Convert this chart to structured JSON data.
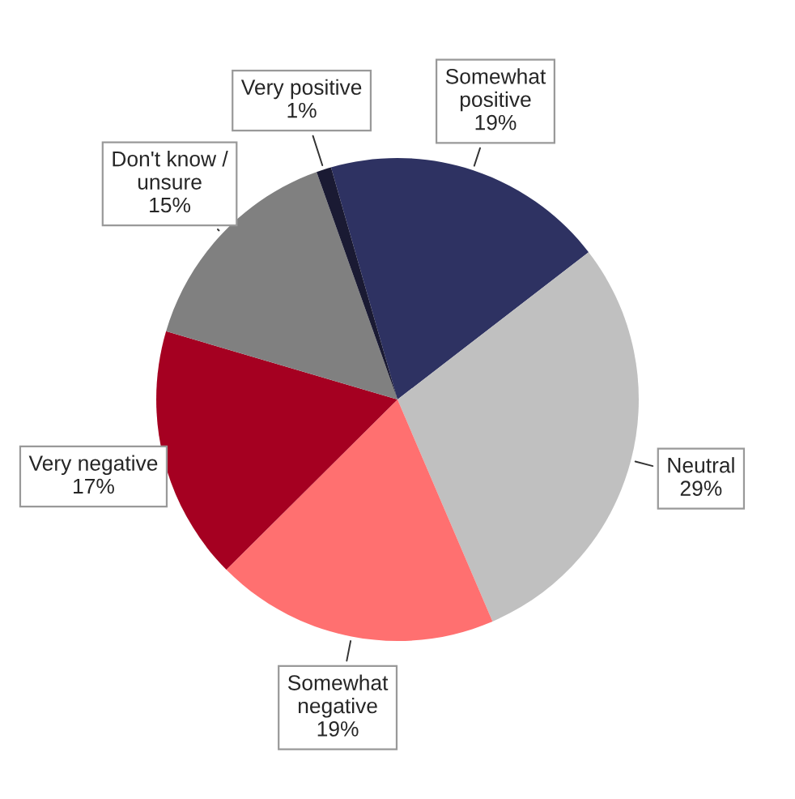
{
  "chart_data": {
    "type": "pie",
    "categories": [
      "Somewhat positive",
      "Neutral",
      "Somewhat negative",
      "Very negative",
      "Don't know / unsure",
      "Very positive"
    ],
    "values": [
      19,
      29,
      19,
      17,
      15,
      1
    ],
    "value_labels": [
      "19%",
      "29%",
      "19%",
      "17%",
      "15%",
      "1%"
    ],
    "colors": [
      "#2e3262",
      "#c0c0c0",
      "#ff7070",
      "#a50021",
      "#808080",
      "#1a1a33"
    ]
  }
}
